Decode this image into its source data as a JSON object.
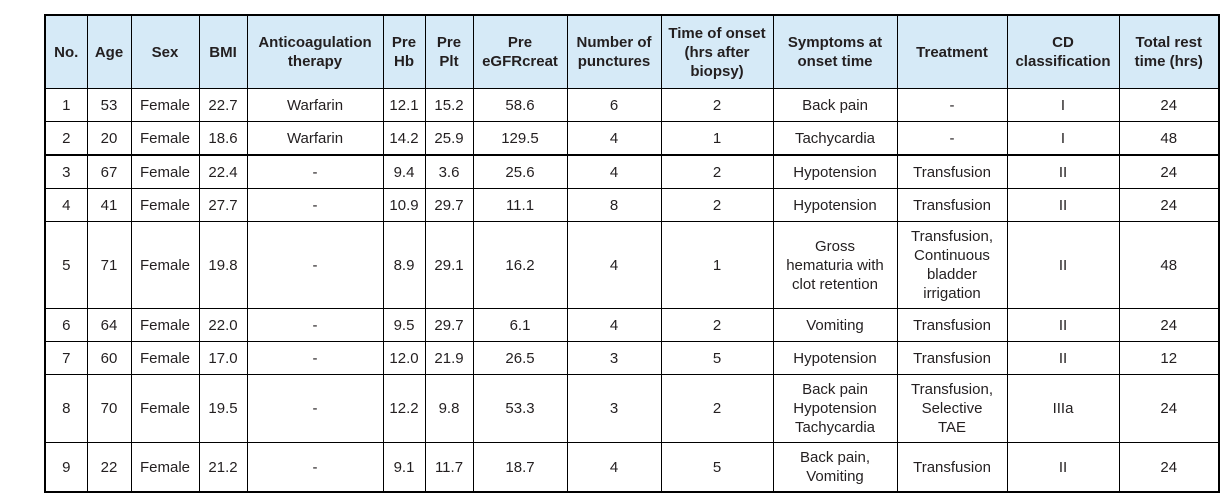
{
  "table": {
    "colors": {
      "header_bg": "#d6eaf7",
      "border": "#000000",
      "text": "#231f20"
    },
    "thick_border_top_row_index": 2,
    "columns": [
      "No.",
      "Age",
      "Sex",
      "BMI",
      "Anticoagulation\ntherapy",
      "Pre\nHb",
      "Pre\nPlt",
      "Pre\neGFRcreat",
      "Number of\npunctures",
      "Time of onset\n(hrs after\nbiopsy)",
      "Symptoms at\nonset time",
      "Treatment",
      "CD\nclassification",
      "Total rest\ntime (hrs)"
    ],
    "rows": [
      [
        "1",
        "53",
        "Female",
        "22.7",
        "Warfarin",
        "12.1",
        "15.2",
        "58.6",
        "6",
        "2",
        "Back pain",
        "-",
        "I",
        "24"
      ],
      [
        "2",
        "20",
        "Female",
        "18.6",
        "Warfarin",
        "14.2",
        "25.9",
        "129.5",
        "4",
        "1",
        "Tachycardia",
        "-",
        "I",
        "48"
      ],
      [
        "3",
        "67",
        "Female",
        "22.4",
        "-",
        "9.4",
        "3.6",
        "25.6",
        "4",
        "2",
        "Hypotension",
        "Transfusion",
        "II",
        "24"
      ],
      [
        "4",
        "41",
        "Female",
        "27.7",
        "-",
        "10.9",
        "29.7",
        "11.1",
        "8",
        "2",
        "Hypotension",
        "Transfusion",
        "II",
        "24"
      ],
      [
        "5",
        "71",
        "Female",
        "19.8",
        "-",
        "8.9",
        "29.1",
        "16.2",
        "4",
        "1",
        "Gross\nhematuria with\nclot retention",
        "Transfusion,\nContinuous\nbladder\nirrigation",
        "II",
        "48"
      ],
      [
        "6",
        "64",
        "Female",
        "22.0",
        "-",
        "9.5",
        "29.7",
        "6.1",
        "4",
        "2",
        "Vomiting",
        "Transfusion",
        "II",
        "24"
      ],
      [
        "7",
        "60",
        "Female",
        "17.0",
        "-",
        "12.0",
        "21.9",
        "26.5",
        "3",
        "5",
        "Hypotension",
        "Transfusion",
        "II",
        "12"
      ],
      [
        "8",
        "70",
        "Female",
        "19.5",
        "-",
        "12.2",
        "9.8",
        "53.3",
        "3",
        "2",
        "Back pain\nHypotension\nTachycardia",
        "Transfusion,\nSelective\nTAE",
        "IIIa",
        "24"
      ],
      [
        "9",
        "22",
        "Female",
        "21.2",
        "-",
        "9.1",
        "11.7",
        "18.7",
        "4",
        "5",
        "Back pain,\nVomiting",
        "Transfusion",
        "II",
        "24"
      ]
    ]
  }
}
